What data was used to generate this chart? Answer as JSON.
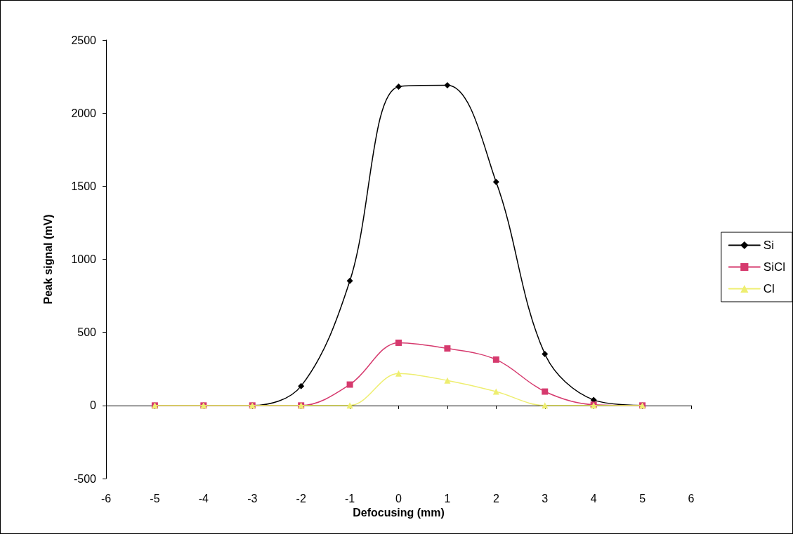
{
  "chart_data": {
    "type": "line",
    "xlabel": "Defocusing (mm)",
    "ylabel": "Peak signal (mV)",
    "x": [
      -5,
      -4,
      -3,
      -2,
      -1,
      0,
      1,
      2,
      3,
      4,
      5
    ],
    "series": [
      {
        "name": "Si",
        "color": "#000000",
        "marker": "diamond",
        "values": [
          0,
          0,
          0,
          133,
          852,
          2181,
          2190,
          1529,
          352,
          38,
          0
        ]
      },
      {
        "name": "SiCl",
        "color": "#d63a6e",
        "marker": "square",
        "values": [
          0,
          0,
          0,
          0,
          143,
          429,
          390,
          314,
          95,
          5,
          0
        ]
      },
      {
        "name": "Cl",
        "color": "#eeee70",
        "marker": "triangle",
        "values": [
          0,
          0,
          0,
          0,
          0,
          219,
          171,
          95,
          0,
          0,
          0
        ]
      }
    ],
    "xlim": [
      -6,
      6
    ],
    "xticks": [
      -6,
      -5,
      -4,
      -3,
      -2,
      -1,
      0,
      1,
      2,
      3,
      4,
      5,
      6
    ],
    "ylim": [
      -500,
      2500
    ],
    "yticks": [
      -500,
      0,
      500,
      1000,
      1500,
      2000,
      2500
    ],
    "legend": "right",
    "line_style": "solid"
  }
}
